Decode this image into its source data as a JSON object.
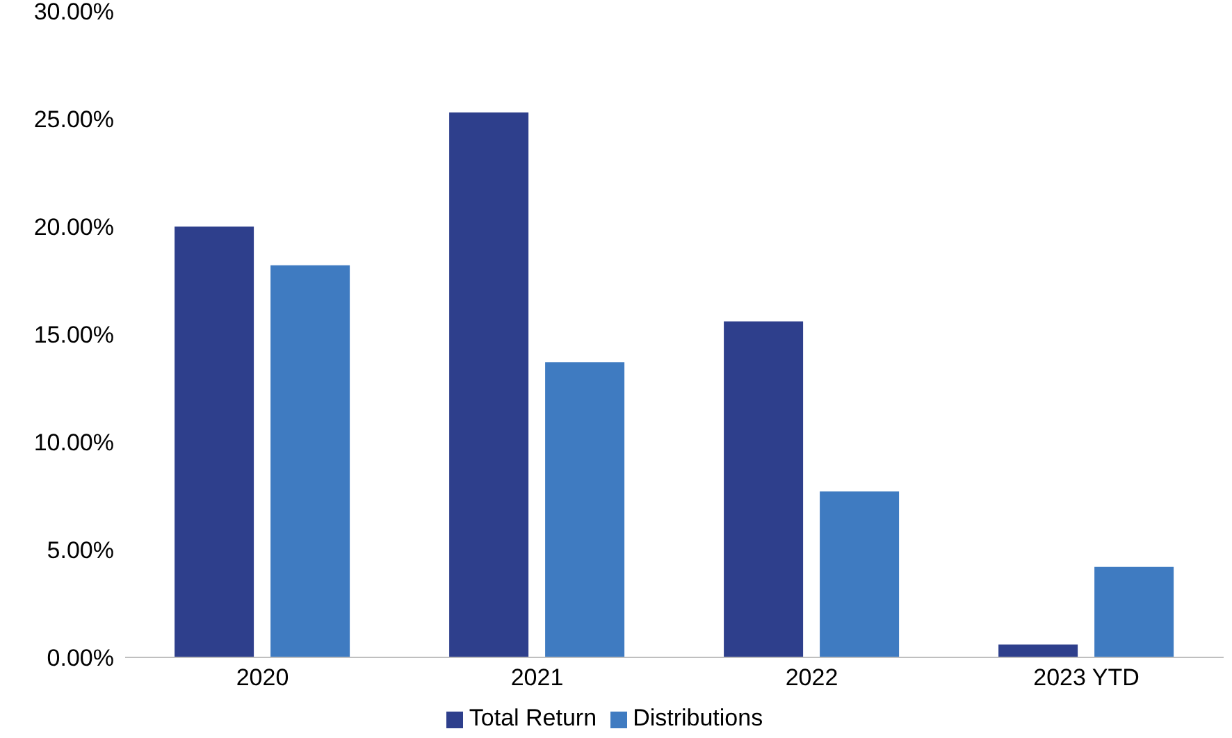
{
  "chart_data": {
    "type": "bar",
    "categories": [
      "2020",
      "2021",
      "2022",
      "2023 YTD"
    ],
    "series": [
      {
        "name": "Total Return",
        "color": "#2e3f8c",
        "values": [
          20.0,
          25.3,
          15.6,
          0.6
        ]
      },
      {
        "name": "Distributions",
        "color": "#3f7bc1",
        "values": [
          18.2,
          13.7,
          7.7,
          4.2
        ]
      }
    ],
    "ylim": [
      0,
      30
    ],
    "yticks": [
      {
        "value": 0,
        "label": "0.00%"
      },
      {
        "value": 5,
        "label": "5.00%"
      },
      {
        "value": 10,
        "label": "10.00%"
      },
      {
        "value": 15,
        "label": "15.00%"
      },
      {
        "value": 20,
        "label": "20.00%"
      },
      {
        "value": 25,
        "label": "25.00%"
      },
      {
        "value": 30,
        "label": "30.00%"
      }
    ],
    "grid": false,
    "legend": "bottom"
  }
}
